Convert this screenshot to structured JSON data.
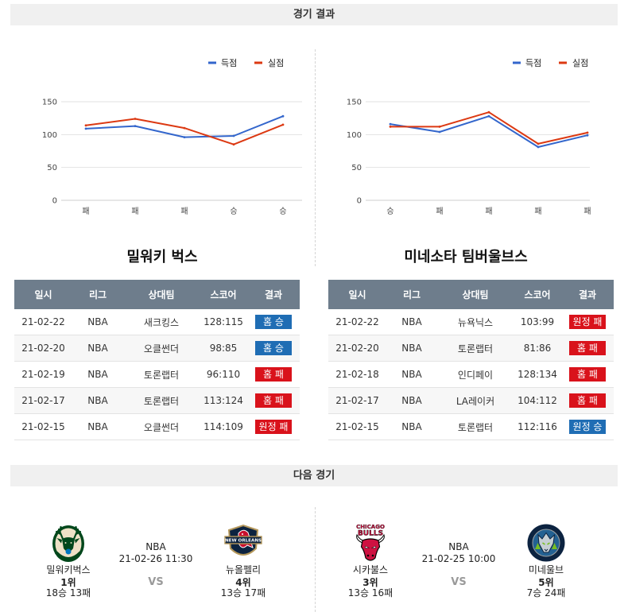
{
  "sections": {
    "results_title": "경기 결과",
    "next_title": "다음 경기"
  },
  "teams": [
    {
      "name": "밀워키 벅스",
      "columns": [
        "일시",
        "리그",
        "상대팀",
        "스코어",
        "결과"
      ],
      "rows": [
        {
          "date": "21-02-22",
          "league": "NBA",
          "opponent": "새크킹스",
          "score": "128:115",
          "result": "홈 승",
          "badge_color": "#1f6db4"
        },
        {
          "date": "21-02-20",
          "league": "NBA",
          "opponent": "오클썬더",
          "score": "98:85",
          "result": "홈 승",
          "badge_color": "#1f6db4"
        },
        {
          "date": "21-02-19",
          "league": "NBA",
          "opponent": "토론랩터",
          "score": "96:110",
          "result": "홈 패",
          "badge_color": "#d9121b"
        },
        {
          "date": "21-02-17",
          "league": "NBA",
          "opponent": "토론랩터",
          "score": "113:124",
          "result": "홈 패",
          "badge_color": "#d9121b"
        },
        {
          "date": "21-02-15",
          "league": "NBA",
          "opponent": "오클썬더",
          "score": "114:109",
          "result": "원정 패",
          "badge_color": "#d9121b"
        }
      ]
    },
    {
      "name": "미네소타 팀버울브스",
      "columns": [
        "일시",
        "리그",
        "상대팀",
        "스코어",
        "결과"
      ],
      "rows": [
        {
          "date": "21-02-22",
          "league": "NBA",
          "opponent": "뉴욕닉스",
          "score": "103:99",
          "result": "원정 패",
          "badge_color": "#d9121b"
        },
        {
          "date": "21-02-20",
          "league": "NBA",
          "opponent": "토론랩터",
          "score": "81:86",
          "result": "홈 패",
          "badge_color": "#d9121b"
        },
        {
          "date": "21-02-18",
          "league": "NBA",
          "opponent": "인디페이",
          "score": "128:134",
          "result": "홈 패",
          "badge_color": "#d9121b"
        },
        {
          "date": "21-02-17",
          "league": "NBA",
          "opponent": "LA레이커",
          "score": "104:112",
          "result": "홈 패",
          "badge_color": "#d9121b"
        },
        {
          "date": "21-02-15",
          "league": "NBA",
          "opponent": "토론랩터",
          "score": "112:116",
          "result": "원정 승",
          "badge_color": "#1f6db4"
        }
      ]
    }
  ],
  "chart_data": [
    {
      "type": "line",
      "categories": [
        "패",
        "패",
        "패",
        "승",
        "승"
      ],
      "series": [
        {
          "name": "득점",
          "color": "#3366cc",
          "values": [
            109,
            113,
            96,
            98,
            128
          ]
        },
        {
          "name": "실점",
          "color": "#dc3912",
          "values": [
            114,
            124,
            110,
            85,
            115
          ]
        }
      ],
      "yticks": [
        0,
        50,
        100,
        150
      ],
      "ylim": [
        0,
        150
      ],
      "grid": true,
      "legend": "top-right"
    },
    {
      "type": "line",
      "categories": [
        "승",
        "패",
        "패",
        "패",
        "패"
      ],
      "series": [
        {
          "name": "득점",
          "color": "#3366cc",
          "values": [
            116,
            104,
            128,
            81,
            99
          ]
        },
        {
          "name": "실점",
          "color": "#dc3912",
          "values": [
            112,
            112,
            134,
            86,
            103
          ]
        }
      ],
      "yticks": [
        0,
        50,
        100,
        150
      ],
      "ylim": [
        0,
        150
      ],
      "grid": true,
      "legend": "top-right"
    }
  ],
  "next_games": [
    {
      "league": "NBA",
      "datetime": "21-02-26 11:30",
      "vs": "VS",
      "teams": [
        {
          "name": "밀워키벅스",
          "rank": "1위",
          "record": "18승 13패",
          "logo": "bucks-logo"
        },
        {
          "name": "뉴올펠리",
          "rank": "4위",
          "record": "13승 17패",
          "logo": "pelicans-logo",
          "logo_text": [
            "NEW ORLEANS"
          ]
        }
      ]
    },
    {
      "league": "NBA",
      "datetime": "21-02-25 10:00",
      "vs": "VS",
      "teams": [
        {
          "name": "시카불스",
          "rank": "3위",
          "record": "13승 16패",
          "logo": "bulls-logo",
          "logo_text": [
            "CHICAGO",
            "BULLS"
          ]
        },
        {
          "name": "미네울브",
          "rank": "5위",
          "record": "7승 24패",
          "logo": "timberwolves-logo"
        }
      ]
    }
  ]
}
